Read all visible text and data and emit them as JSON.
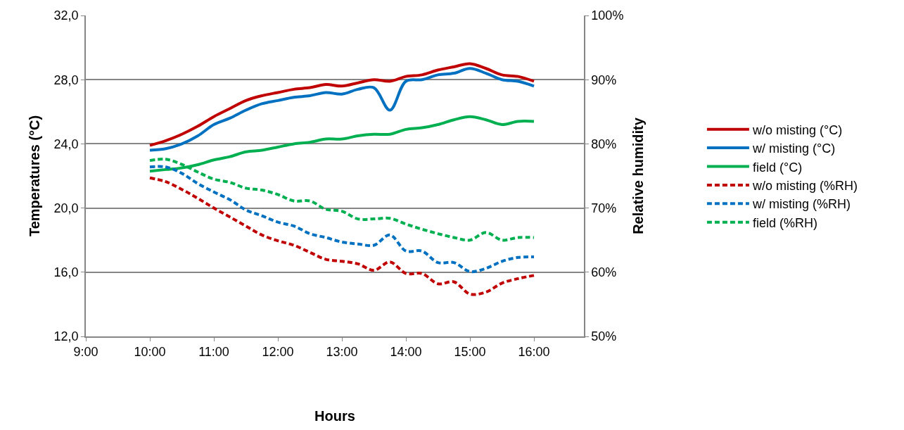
{
  "chart_data": {
    "type": "line",
    "xlabel": "Hours",
    "ylabel": "Temperatures (°C)",
    "y2label": "Relative humidity",
    "x": [
      10,
      10.25,
      10.5,
      10.75,
      11,
      11.25,
      11.5,
      11.75,
      12,
      12.25,
      12.5,
      12.75,
      13,
      13.25,
      13.5,
      13.75,
      14,
      14.25,
      14.5,
      14.75,
      15,
      15.25,
      15.5,
      15.75,
      16
    ],
    "series": [
      {
        "name": "w/o misting (°C)",
        "color": "#c00000",
        "line_style": "solid",
        "values": [
          23.9,
          24.2,
          24.6,
          25.1,
          25.7,
          26.2,
          26.7,
          27.0,
          27.2,
          27.4,
          27.5,
          27.7,
          27.6,
          27.8,
          28.0,
          27.9,
          28.2,
          28.3,
          28.6,
          28.8,
          29.0,
          28.7,
          28.3,
          28.2,
          27.9
        ]
      },
      {
        "name": "w/ misting (°C)",
        "color": "#0070c0",
        "line_style": "solid",
        "values": [
          23.6,
          23.7,
          24.0,
          24.5,
          25.2,
          25.6,
          26.1,
          26.5,
          26.7,
          26.9,
          27.0,
          27.2,
          27.1,
          27.4,
          27.5,
          26.1,
          27.9,
          28.0,
          28.3,
          28.4,
          28.7,
          28.4,
          28.0,
          27.9,
          27.6
        ]
      },
      {
        "name": "field (°C)",
        "color": "#00b050",
        "line_style": "solid",
        "values": [
          22.3,
          22.4,
          22.5,
          22.7,
          23.0,
          23.2,
          23.5,
          23.6,
          23.8,
          24.0,
          24.1,
          24.3,
          24.3,
          24.5,
          24.6,
          24.6,
          24.9,
          25.0,
          25.2,
          25.5,
          25.7,
          25.5,
          25.2,
          25.4,
          25.4
        ]
      },
      {
        "name": "w/o misting (%RH)",
        "color": "#c00000",
        "line_style": "dashed",
        "axis": "y2",
        "values": [
          74.7,
          74.1,
          72.9,
          71.5,
          70.0,
          68.6,
          67.2,
          65.8,
          64.9,
          64.2,
          63.1,
          62.0,
          61.7,
          61.3,
          60.3,
          61.6,
          59.8,
          59.8,
          58.2,
          58.5,
          56.6,
          56.9,
          58.3,
          59.0,
          59.5
        ]
      },
      {
        "name": "w/ misting (%RH)",
        "color": "#0070c0",
        "line_style": "dashed",
        "axis": "y2",
        "values": [
          76.4,
          76.4,
          75.4,
          73.8,
          72.5,
          71.3,
          69.7,
          68.8,
          67.8,
          67.2,
          66.0,
          65.4,
          64.7,
          64.4,
          64.2,
          65.8,
          63.3,
          63.3,
          61.5,
          61.5,
          60.1,
          60.6,
          61.7,
          62.3,
          62.4
        ]
      },
      {
        "name": "field (%RH)",
        "color": "#00b050",
        "line_style": "dashed",
        "axis": "y2",
        "values": [
          77.4,
          77.6,
          76.8,
          75.6,
          74.5,
          74.0,
          73.1,
          72.8,
          72.1,
          71.1,
          71.1,
          69.8,
          69.5,
          68.3,
          68.3,
          68.4,
          67.5,
          66.7,
          66.0,
          65.4,
          65.0,
          66.2,
          65.0,
          65.4,
          65.4
        ]
      }
    ],
    "xlim": [
      9,
      16.78
    ],
    "xticks": [
      {
        "value": 9,
        "label": "9:00"
      },
      {
        "value": 10,
        "label": "10:00"
      },
      {
        "value": 11,
        "label": "11:00"
      },
      {
        "value": 12,
        "label": "12:00"
      },
      {
        "value": 13,
        "label": "13:00"
      },
      {
        "value": 14,
        "label": "14:00"
      },
      {
        "value": 15,
        "label": "15:00"
      },
      {
        "value": 16,
        "label": "16:00"
      }
    ],
    "ylim": [
      12,
      32
    ],
    "yticks": [
      {
        "value": 12,
        "label": "12,0"
      },
      {
        "value": 16,
        "label": "16,0"
      },
      {
        "value": 20,
        "label": "20,0"
      },
      {
        "value": 24,
        "label": "24,0"
      },
      {
        "value": 28,
        "label": "28,0"
      },
      {
        "value": 32,
        "label": "32,0"
      }
    ],
    "y2lim": [
      50,
      100
    ],
    "y2ticks": [
      {
        "value": 50,
        "label": "50%"
      },
      {
        "value": 60,
        "label": "60%"
      },
      {
        "value": 70,
        "label": "70%"
      },
      {
        "value": 80,
        "label": "80%"
      },
      {
        "value": 90,
        "label": "90%"
      },
      {
        "value": 100,
        "label": "100%"
      }
    ],
    "grid": "y",
    "legend": "right",
    "marker": "none"
  }
}
